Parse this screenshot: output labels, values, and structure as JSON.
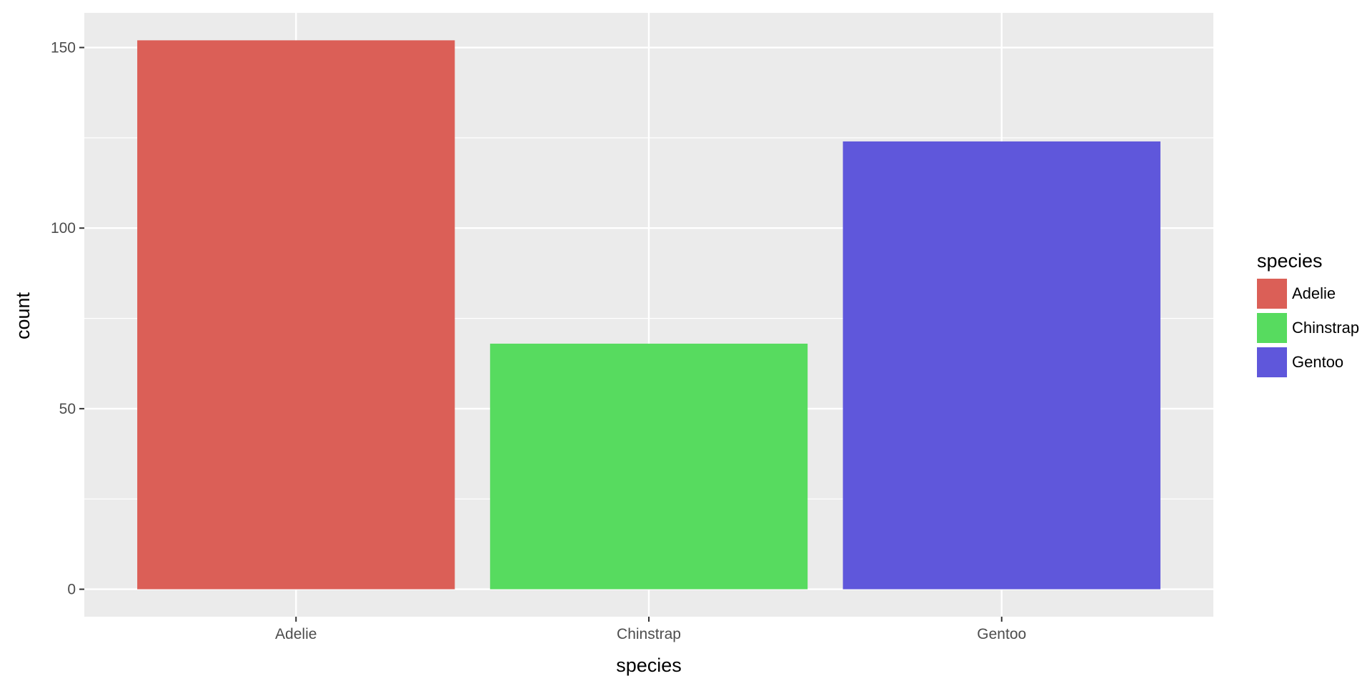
{
  "chart_data": {
    "type": "bar",
    "categories": [
      "Adelie",
      "Chinstrap",
      "Gentoo"
    ],
    "values": [
      152,
      68,
      124
    ],
    "colors": [
      "#db5f57",
      "#57db5f",
      "#5f57db"
    ],
    "xlabel": "species",
    "ylabel": "count",
    "ylim": [
      -7.6,
      159.6
    ],
    "yticks": [
      0,
      50,
      100,
      150
    ],
    "yticks_minor": [
      25,
      75,
      125
    ],
    "grid": true,
    "panel_background": "#ebebeb",
    "grid_color": "#ffffff",
    "legend": {
      "title": "species",
      "position": "right",
      "entries": [
        "Adelie",
        "Chinstrap",
        "Gentoo"
      ]
    }
  }
}
